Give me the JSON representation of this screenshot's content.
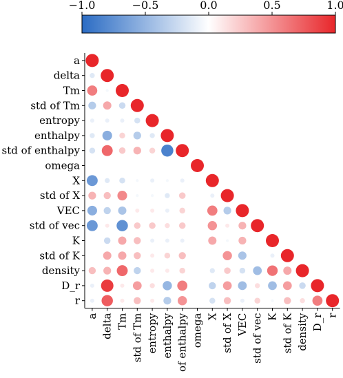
{
  "chart_data": {
    "type": "heatmap",
    "variables": [
      "a",
      "delta",
      "Tm",
      "std of Tm",
      "entropy",
      "enthalpy",
      "std of enthalpy",
      "omega",
      "X",
      "std of X",
      "VEC",
      "std of vec",
      "K",
      "std of K",
      "density",
      "D_r",
      "r"
    ],
    "triangle": "lower",
    "encoding": "circle size and color show correlation",
    "colorbar": {
      "range": [
        -1.0,
        1.0
      ],
      "tick_values": [
        -1.0,
        -0.5,
        0.0,
        0.5,
        1.0
      ],
      "tick_labels": [
        "−1.0",
        "−0.5",
        "0.0",
        "0.5",
        "1.0"
      ],
      "cmap": [
        "#2b6cc4",
        "#ffffff",
        "#e8262a"
      ],
      "location": "top"
    },
    "matrix": [
      [
        1.0
      ],
      [
        -0.15,
        1.0
      ],
      [
        0.6,
        -0.05,
        1.0
      ],
      [
        -0.35,
        0.4,
        -0.25,
        1.0
      ],
      [
        -0.1,
        -0.1,
        -0.1,
        -0.2,
        1.0
      ],
      [
        -0.15,
        -0.55,
        0.2,
        -0.35,
        -0.15,
        1.0
      ],
      [
        -0.2,
        0.7,
        0.25,
        0.35,
        0.2,
        -0.85,
        1.0
      ],
      [
        0.0,
        0.0,
        0.0,
        0.0,
        0.0,
        0.0,
        0.0,
        1.0
      ],
      [
        -0.7,
        -0.15,
        -0.2,
        -0.05,
        -0.1,
        -0.05,
        -0.1,
        0.0,
        1.0
      ],
      [
        0.35,
        0.3,
        0.55,
        -0.05,
        -0.05,
        -0.15,
        0.25,
        0.0,
        -0.1,
        1.0
      ],
      [
        -0.55,
        -0.3,
        -0.4,
        0.1,
        0.1,
        -0.1,
        0.2,
        0.0,
        0.6,
        -0.35,
        1.0
      ],
      [
        -0.7,
        0.1,
        -0.75,
        0.25,
        0.25,
        0.15,
        0.25,
        0.0,
        0.5,
        0.1,
        0.35,
        1.0
      ],
      [
        0.0,
        -0.25,
        0.4,
        0.3,
        -0.1,
        -0.1,
        -0.1,
        0.0,
        0.4,
        -0.05,
        0.35,
        0.0,
        1.0
      ],
      [
        0.0,
        0.4,
        0.4,
        0.3,
        0.1,
        0.2,
        0.3,
        0.0,
        0.0,
        0.5,
        -0.4,
        0.0,
        -0.1,
        1.0
      ],
      [
        0.3,
        0.35,
        0.7,
        -0.3,
        0.1,
        0.1,
        0.2,
        0.0,
        -0.15,
        0.25,
        -0.2,
        -0.45,
        0.65,
        0.4,
        1.0
      ],
      [
        -0.1,
        0.9,
        0.1,
        0.45,
        0.15,
        -0.5,
        0.6,
        0.0,
        -0.3,
        0.45,
        -0.45,
        0.15,
        -0.45,
        0.45,
        -0.25,
        1.0
      ],
      [
        -0.1,
        0.75,
        0.1,
        0.3,
        0.1,
        -0.35,
        0.5,
        0.0,
        -0.2,
        0.3,
        -0.1,
        0.2,
        -0.05,
        0.3,
        0.15,
        0.6,
        1.0
      ]
    ]
  }
}
